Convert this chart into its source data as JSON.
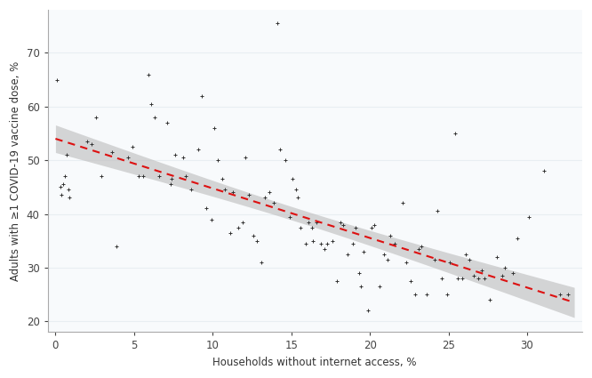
{
  "scatter_points": [
    [
      0.1,
      65.0
    ],
    [
      0.3,
      45.0
    ],
    [
      0.4,
      43.5
    ],
    [
      0.5,
      45.5
    ],
    [
      0.6,
      47.0
    ],
    [
      0.7,
      51.0
    ],
    [
      0.8,
      44.5
    ],
    [
      0.9,
      43.0
    ],
    [
      2.0,
      53.5
    ],
    [
      2.3,
      53.0
    ],
    [
      2.6,
      58.0
    ],
    [
      2.9,
      47.0
    ],
    [
      3.6,
      51.5
    ],
    [
      3.9,
      34.0
    ],
    [
      4.6,
      50.5
    ],
    [
      4.9,
      52.5
    ],
    [
      5.3,
      47.0
    ],
    [
      5.6,
      47.0
    ],
    [
      5.9,
      66.0
    ],
    [
      6.1,
      60.5
    ],
    [
      6.3,
      58.0
    ],
    [
      6.6,
      47.0
    ],
    [
      7.1,
      57.0
    ],
    [
      7.3,
      45.5
    ],
    [
      7.4,
      46.5
    ],
    [
      7.6,
      51.0
    ],
    [
      8.1,
      50.5
    ],
    [
      8.3,
      47.0
    ],
    [
      8.6,
      44.5
    ],
    [
      9.1,
      52.0
    ],
    [
      9.3,
      62.0
    ],
    [
      9.6,
      41.0
    ],
    [
      9.9,
      39.0
    ],
    [
      10.1,
      56.0
    ],
    [
      10.3,
      50.0
    ],
    [
      10.6,
      46.5
    ],
    [
      10.8,
      44.5
    ],
    [
      11.1,
      36.5
    ],
    [
      11.3,
      44.0
    ],
    [
      11.6,
      37.5
    ],
    [
      11.9,
      38.5
    ],
    [
      12.1,
      50.5
    ],
    [
      12.3,
      43.5
    ],
    [
      12.6,
      36.0
    ],
    [
      12.8,
      35.0
    ],
    [
      13.1,
      31.0
    ],
    [
      13.3,
      43.0
    ],
    [
      13.6,
      44.0
    ],
    [
      13.9,
      42.0
    ],
    [
      14.1,
      75.5
    ],
    [
      14.3,
      52.0
    ],
    [
      14.6,
      50.0
    ],
    [
      14.9,
      39.5
    ],
    [
      15.1,
      46.5
    ],
    [
      15.3,
      44.5
    ],
    [
      15.4,
      43.0
    ],
    [
      15.6,
      37.5
    ],
    [
      15.9,
      34.5
    ],
    [
      16.1,
      38.5
    ],
    [
      16.3,
      37.5
    ],
    [
      16.4,
      35.0
    ],
    [
      16.6,
      38.5
    ],
    [
      16.9,
      34.5
    ],
    [
      17.1,
      33.5
    ],
    [
      17.3,
      34.5
    ],
    [
      17.6,
      35.0
    ],
    [
      17.9,
      27.5
    ],
    [
      18.1,
      38.5
    ],
    [
      18.3,
      38.0
    ],
    [
      18.6,
      32.5
    ],
    [
      18.9,
      34.5
    ],
    [
      19.1,
      37.5
    ],
    [
      19.3,
      29.0
    ],
    [
      19.4,
      26.5
    ],
    [
      19.6,
      33.0
    ],
    [
      19.9,
      22.0
    ],
    [
      20.1,
      37.5
    ],
    [
      20.3,
      38.0
    ],
    [
      20.6,
      26.5
    ],
    [
      20.9,
      32.5
    ],
    [
      21.1,
      31.5
    ],
    [
      21.3,
      36.0
    ],
    [
      21.6,
      34.5
    ],
    [
      22.1,
      42.0
    ],
    [
      22.3,
      31.0
    ],
    [
      22.6,
      27.5
    ],
    [
      22.9,
      25.0
    ],
    [
      23.1,
      33.5
    ],
    [
      23.3,
      34.0
    ],
    [
      23.6,
      25.0
    ],
    [
      24.1,
      31.5
    ],
    [
      24.3,
      40.5
    ],
    [
      24.6,
      28.0
    ],
    [
      24.9,
      25.0
    ],
    [
      25.1,
      31.0
    ],
    [
      25.4,
      55.0
    ],
    [
      25.6,
      28.0
    ],
    [
      25.9,
      28.0
    ],
    [
      26.1,
      32.5
    ],
    [
      26.3,
      31.5
    ],
    [
      26.6,
      28.5
    ],
    [
      26.9,
      28.0
    ],
    [
      27.1,
      29.5
    ],
    [
      27.3,
      28.0
    ],
    [
      27.6,
      24.0
    ],
    [
      28.1,
      32.0
    ],
    [
      28.4,
      28.5
    ],
    [
      28.6,
      30.0
    ],
    [
      29.1,
      29.0
    ],
    [
      29.4,
      35.5
    ],
    [
      30.1,
      39.5
    ],
    [
      31.1,
      48.0
    ],
    [
      32.1,
      25.0
    ],
    [
      32.6,
      25.0
    ]
  ],
  "regression_slope": -0.924,
  "regression_intercept": 54.0,
  "x_min": -0.5,
  "x_max": 33.5,
  "y_min": 18,
  "y_max": 78,
  "x_ticks": [
    0,
    5,
    10,
    15,
    20,
    25,
    30
  ],
  "y_ticks": [
    20,
    30,
    40,
    50,
    60,
    70
  ],
  "xlabel": "Households without internet access, %",
  "ylabel": "Adults with ≥1 COVID-19 vaccine dose, %",
  "scatter_color": "#333333",
  "line_color": "#dd1111",
  "ci_color": "#bbbbbb",
  "ci_alpha": 0.6,
  "plot_bg_color": "#f8fafc",
  "fig_bg_color": "#ffffff",
  "spine_color": "#aaaaaa",
  "grid_color": "#e8eef2",
  "marker_size": 3.5,
  "n_points_ci": 300,
  "residual_se": 6.8
}
